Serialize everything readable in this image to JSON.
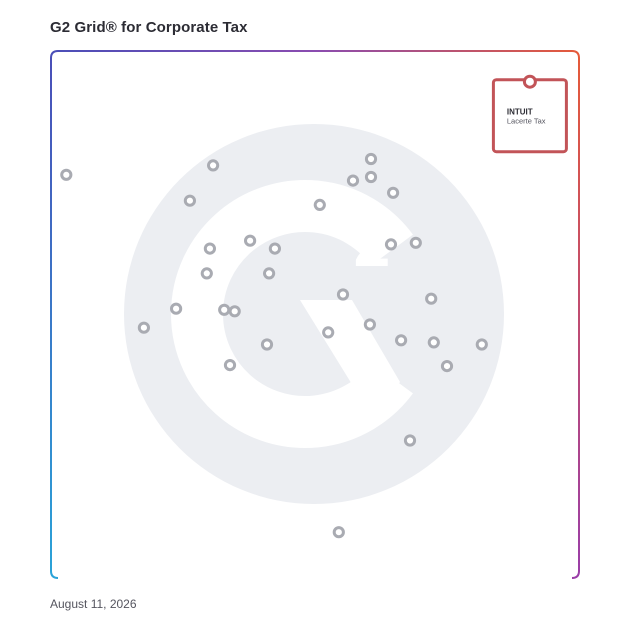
{
  "header": {
    "title": "G2 Grid® for Corporate Tax"
  },
  "footer": {
    "date": "August 11, 2026"
  },
  "colors": {
    "frame_gradient": [
      "#4a4fb8",
      "#8a4cb0",
      "#e55a3a"
    ],
    "frame_gradient_bottom": [
      "#2aa3d8",
      "#6a4fc0",
      "#9a3ea8"
    ],
    "point_stroke": "#a9abb2",
    "highlight": "#c25458",
    "watermark": "#eceef2"
  },
  "chart_data": {
    "type": "scatter",
    "title": "G2 Grid® for Corporate Tax",
    "xlabel": "",
    "ylabel": "",
    "xlim": [
      0,
      100
    ],
    "ylim": [
      0,
      100
    ],
    "grid": false,
    "quadrant_dividers": {
      "x": 50,
      "y": 50
    },
    "points": [
      {
        "x": 2.9,
        "y": 76.5
      },
      {
        "x": 30.7,
        "y": 78.3
      },
      {
        "x": 26.3,
        "y": 71.6
      },
      {
        "x": 30.1,
        "y": 62.5
      },
      {
        "x": 37.7,
        "y": 64.0
      },
      {
        "x": 42.4,
        "y": 62.5
      },
      {
        "x": 29.5,
        "y": 57.8
      },
      {
        "x": 41.3,
        "y": 57.8
      },
      {
        "x": 23.7,
        "y": 51.1
      },
      {
        "x": 17.6,
        "y": 47.5
      },
      {
        "x": 32.8,
        "y": 50.9
      },
      {
        "x": 34.8,
        "y": 50.6
      },
      {
        "x": 40.9,
        "y": 44.3
      },
      {
        "x": 33.9,
        "y": 40.4
      },
      {
        "x": 50.9,
        "y": 70.8
      },
      {
        "x": 60.6,
        "y": 79.5
      },
      {
        "x": 57.2,
        "y": 75.4
      },
      {
        "x": 60.6,
        "y": 76.1
      },
      {
        "x": 64.8,
        "y": 73.1
      },
      {
        "x": 64.4,
        "y": 63.3
      },
      {
        "x": 69.1,
        "y": 63.6
      },
      {
        "x": 55.3,
        "y": 53.8
      },
      {
        "x": 72.0,
        "y": 53.0
      },
      {
        "x": 60.4,
        "y": 48.1
      },
      {
        "x": 52.5,
        "y": 46.6
      },
      {
        "x": 66.3,
        "y": 45.1
      },
      {
        "x": 72.5,
        "y": 44.7
      },
      {
        "x": 81.6,
        "y": 44.3
      },
      {
        "x": 75.0,
        "y": 40.2
      },
      {
        "x": 68.0,
        "y": 26.1
      },
      {
        "x": 54.5,
        "y": 8.7
      }
    ],
    "highlight": {
      "name": "Intuit Lacerte Tax",
      "brand": "INTUIT",
      "product": "Lacerte Tax",
      "x": 90.7,
      "y": 93.8
    }
  }
}
